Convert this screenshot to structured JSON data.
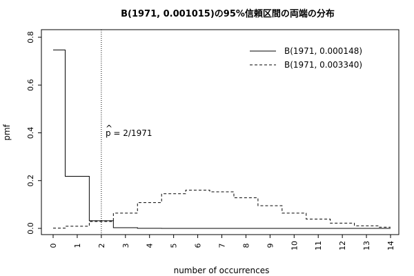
{
  "chart_data": {
    "type": "line",
    "title": "B(1971, 0.001015)の95%信頼区間の両端の分布",
    "xlabel": "number of occurrences",
    "ylabel": "pmf",
    "xlim": [
      0,
      14
    ],
    "ylim": [
      0,
      0.8
    ],
    "x_ticks": [
      "0",
      "1",
      "2",
      "3",
      "4",
      "5",
      "6",
      "7",
      "8",
      "9",
      "10",
      "11",
      "12",
      "13",
      "14"
    ],
    "y_ticks": [
      "0.0",
      "0.2",
      "0.4",
      "0.6",
      "0.8"
    ],
    "legend_position": "top-right",
    "grid": false,
    "series": [
      {
        "name": "B(1971, 0.000148)",
        "style": "solid",
        "x": [
          0,
          1,
          2,
          3,
          4,
          5,
          6,
          7,
          8,
          9,
          10,
          11,
          12,
          13,
          14
        ],
        "values": [
          0.747,
          0.218,
          0.032,
          0.003,
          0.0002,
          0,
          0,
          0,
          0,
          0,
          0,
          0,
          0,
          0,
          0
        ]
      },
      {
        "name": "B(1971, 0.003340)",
        "style": "dashed",
        "x": [
          0,
          1,
          2,
          3,
          4,
          5,
          6,
          7,
          8,
          9,
          10,
          11,
          12,
          13,
          14
        ],
        "values": [
          0.001,
          0.009,
          0.029,
          0.064,
          0.108,
          0.145,
          0.16,
          0.153,
          0.128,
          0.095,
          0.064,
          0.039,
          0.022,
          0.011,
          0.005
        ]
      }
    ],
    "vline": {
      "x": 2.0,
      "style": "dotted"
    },
    "annotation": {
      "hat": "^",
      "text": "p = 2/1971",
      "x": 2.2,
      "y": 0.42
    }
  }
}
